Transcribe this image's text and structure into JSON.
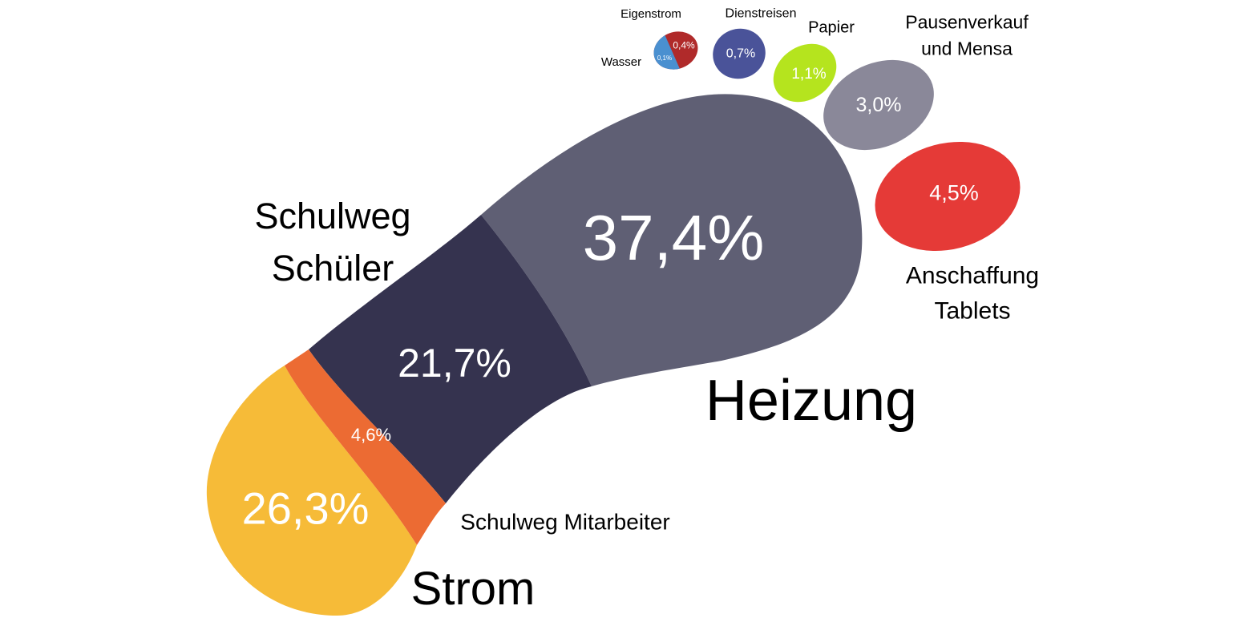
{
  "chart_data": {
    "type": "footprint",
    "categories": [
      "Heizung",
      "Strom",
      "Schulweg Schüler",
      "Schulweg Mitarbeiter",
      "Anschaffung Tablets",
      "Pausenverkauf und Mensa",
      "Papier",
      "Dienstreisen",
      "Eigenstrom",
      "Wasser"
    ],
    "values": [
      37.4,
      26.3,
      21.7,
      4.6,
      4.5,
      3.0,
      1.1,
      0.7,
      0.4,
      0.1
    ],
    "value_labels": [
      "37,4%",
      "26,3%",
      "21,7%",
      "4,6%",
      "4,5%",
      "3,0%",
      "1,1%",
      "0,7%",
      "0,4%",
      "0,1%"
    ],
    "colors": [
      "#5f5f74",
      "#f6bb38",
      "#35334f",
      "#ec6b33",
      "#e53a37",
      "#8a8899",
      "#b5e41e",
      "#4a5399",
      "#b02a2a",
      "#4a90d0"
    ]
  }
}
